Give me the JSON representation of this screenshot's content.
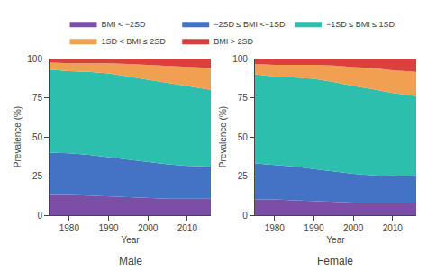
{
  "chart_data": [
    {
      "type": "area",
      "stacked": true,
      "title": "Male",
      "xlabel": "Year",
      "ylabel": "Prevalence (%)",
      "x": [
        1975,
        1980,
        1985,
        1990,
        1995,
        2000,
        2005,
        2010,
        2016
      ],
      "series": [
        {
          "name": "BMI < −2SD",
          "color": "#7b4fa6",
          "values": [
            13.0,
            13.0,
            12.5,
            12.0,
            11.5,
            11.0,
            10.5,
            10.5,
            10.5
          ]
        },
        {
          "name": "−2SD ≤ BMI <−1SD",
          "color": "#4472c4",
          "values": [
            27.0,
            26.5,
            26.0,
            25.0,
            24.0,
            23.0,
            22.0,
            21.0,
            20.5
          ]
        },
        {
          "name": "−1SD ≤ BMI ≤ 1SD",
          "color": "#2dbfad",
          "values": [
            53.0,
            52.5,
            53.0,
            53.5,
            53.0,
            52.5,
            52.0,
            51.0,
            49.0
          ]
        },
        {
          "name": "1SD < BMI ≤ 2SD",
          "color": "#f0a050",
          "values": [
            4.5,
            5.0,
            5.5,
            6.5,
            8.0,
            9.5,
            11.0,
            12.5,
            14.0
          ]
        },
        {
          "name": "BMI > 2SD",
          "color": "#d94040",
          "values": [
            2.5,
            3.0,
            3.0,
            3.0,
            3.5,
            4.0,
            4.5,
            5.0,
            6.0
          ]
        }
      ],
      "xlim": [
        1975,
        2016
      ],
      "xticks": [
        1980,
        1990,
        2000,
        2010
      ],
      "ylim": [
        0,
        100
      ],
      "yticks": [
        0,
        25,
        50,
        75,
        100
      ],
      "grid": false,
      "legend": "top"
    },
    {
      "type": "area",
      "stacked": true,
      "title": "Female",
      "xlabel": "Year",
      "ylabel": "Prevalence (%)",
      "x": [
        1975,
        1980,
        1985,
        1990,
        1995,
        2000,
        2005,
        2010,
        2016
      ],
      "series": [
        {
          "name": "BMI < −2SD",
          "color": "#7b4fa6",
          "values": [
            10.0,
            10.0,
            9.5,
            9.0,
            8.5,
            8.0,
            8.0,
            8.0,
            8.0
          ]
        },
        {
          "name": "−2SD ≤ BMI <−1SD",
          "color": "#4472c4",
          "values": [
            23.0,
            22.0,
            21.5,
            20.5,
            19.5,
            18.5,
            17.5,
            17.0,
            17.0
          ]
        },
        {
          "name": "−1SD ≤ BMI ≤ 1SD",
          "color": "#2dbfad",
          "values": [
            57.0,
            56.5,
            57.0,
            57.5,
            57.0,
            56.0,
            55.0,
            53.0,
            51.0
          ]
        },
        {
          "name": "1SD < BMI ≤ 2SD",
          "color": "#f0a050",
          "values": [
            6.5,
            7.5,
            8.0,
            9.0,
            10.5,
            12.0,
            13.5,
            14.5,
            15.5
          ]
        },
        {
          "name": "BMI > 2SD",
          "color": "#d94040",
          "values": [
            3.5,
            4.0,
            4.0,
            4.0,
            4.5,
            5.5,
            6.0,
            7.5,
            8.5
          ]
        }
      ],
      "xlim": [
        1975,
        2016
      ],
      "xticks": [
        1980,
        1990,
        2000,
        2010
      ],
      "ylim": [
        0,
        100
      ],
      "yticks": [
        0,
        25,
        50,
        75,
        100
      ],
      "grid": false,
      "legend": "top"
    }
  ]
}
